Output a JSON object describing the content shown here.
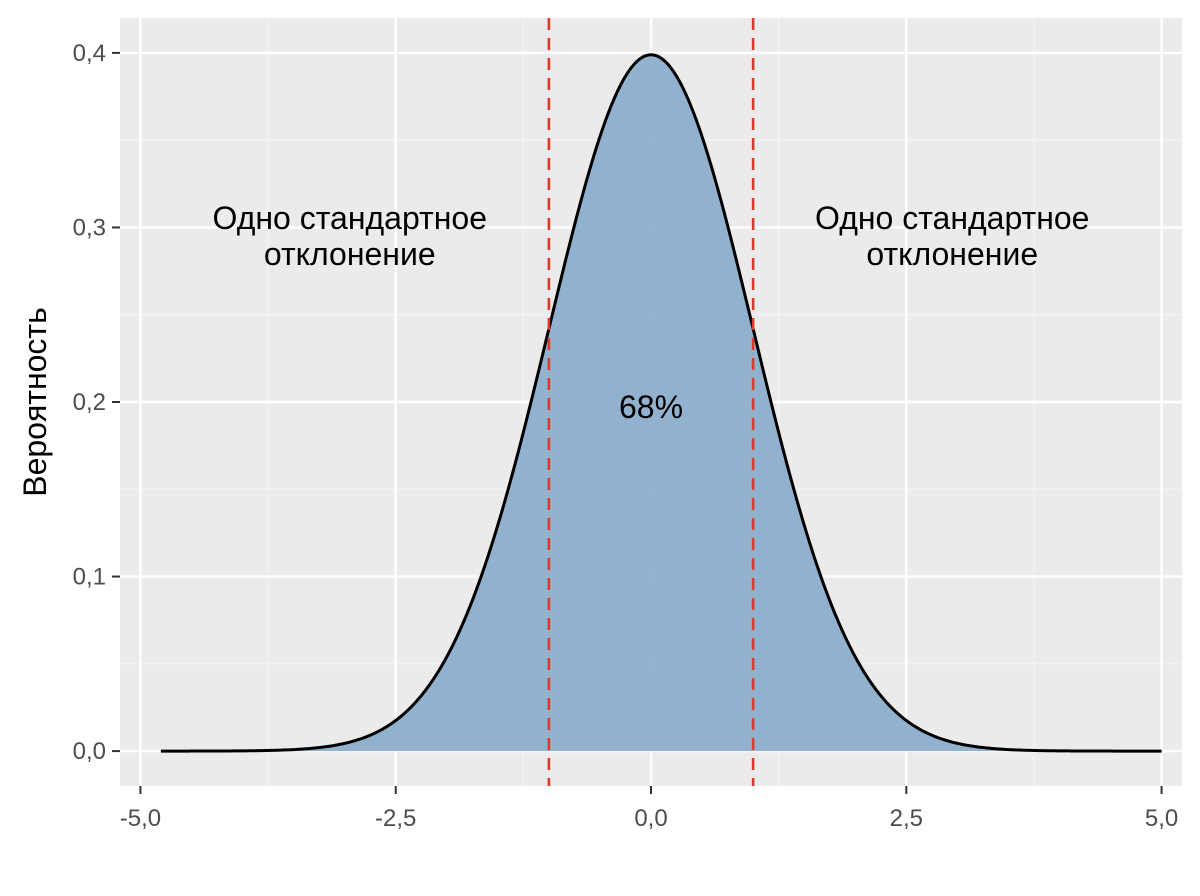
{
  "chart_data": {
    "type": "area",
    "title": "",
    "xlabel": "",
    "ylabel": "Вероятность",
    "xlim": [
      -5.2,
      5.2
    ],
    "ylim": [
      -0.02,
      0.42
    ],
    "x_ticks": [
      -5,
      -2.5,
      0,
      2.5,
      5
    ],
    "x_tick_labels": [
      "-5,0",
      "-2,5",
      "0,0",
      "2,5",
      "5,0"
    ],
    "y_ticks": [
      0,
      0.1,
      0.2,
      0.3,
      0.4
    ],
    "y_tick_labels": [
      "0,0",
      "0,1",
      "0,2",
      "0,3",
      "0,4"
    ],
    "grid": true,
    "series": [
      {
        "distribution": "normal",
        "mean": 0,
        "sd": 1,
        "x_range": [
          -4.8,
          5.0
        ],
        "fill_color": "#8daecd",
        "line_color": "#000000"
      }
    ],
    "vlines": [
      {
        "x": -1,
        "color": "#d93a2b",
        "style": "dashed"
      },
      {
        "x": 1,
        "color": "#d93a2b",
        "style": "dashed"
      }
    ],
    "annotations": [
      {
        "id": "left",
        "x": -2.95,
        "y": 0.295,
        "lines": [
          "Одно стандартное",
          "отклонение"
        ]
      },
      {
        "id": "right",
        "x": 2.95,
        "y": 0.295,
        "lines": [
          "Одно стандартное",
          "отклонение"
        ]
      },
      {
        "id": "center",
        "x": 0,
        "y": 0.197,
        "lines": [
          "68%"
        ]
      }
    ],
    "colors": {
      "panel_background": "#ebebeb",
      "grid_major": "#ffffff",
      "grid_minor": "#f5f5f5"
    }
  }
}
